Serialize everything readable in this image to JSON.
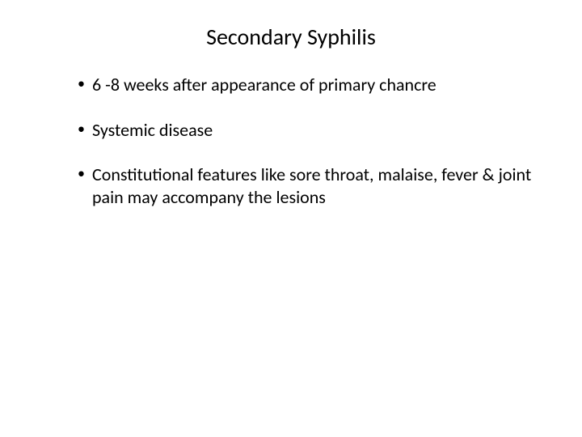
{
  "slide": {
    "title": "Secondary Syphilis",
    "bullets": [
      "6 -8 weeks after appearance of primary chancre",
      "Systemic disease",
      "Constitutional features like sore throat, malaise, fever & joint pain may accompany the lesions"
    ],
    "colors": {
      "background": "#ffffff",
      "text": "#000000"
    },
    "typography": {
      "font_family": "Calibri",
      "title_fontsize": 28,
      "body_fontsize": 22
    }
  }
}
